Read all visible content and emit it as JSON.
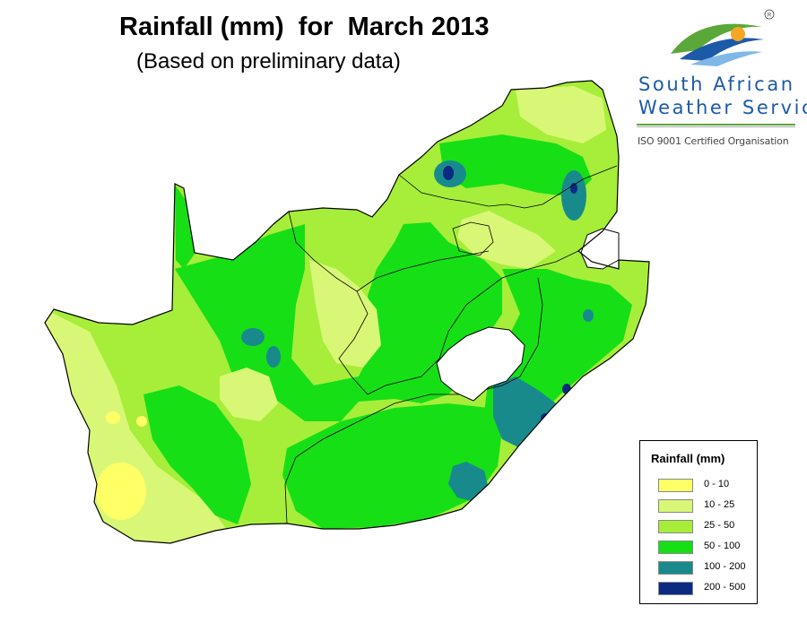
{
  "header": {
    "title": "Rainfall (mm)  for  March 2013",
    "subtitle": "(Based on preliminary data)"
  },
  "logo": {
    "name_line1": "South African",
    "name_line2": "Weather Service",
    "registered_mark": "R",
    "tagline": "ISO 9001 Certified Organisation",
    "colors": {
      "text": "#1c5aa8",
      "sun": "#f5a623",
      "green": "#5aa83a",
      "blue": "#1c5aa8"
    }
  },
  "legend": {
    "title": "Rainfall (mm)",
    "items": [
      {
        "label": "0 - 10",
        "color": "#ffff66"
      },
      {
        "label": "10 - 25",
        "color": "#d9f776"
      },
      {
        "label": "25 - 50",
        "color": "#a6ee3a"
      },
      {
        "label": "50 - 100",
        "color": "#16df16"
      },
      {
        "label": "100 - 200",
        "color": "#198a8c"
      },
      {
        "label": "200 - 500",
        "color": "#0b2a82"
      }
    ]
  },
  "map": {
    "subject": "South Africa",
    "enclave_color": "#ffffff",
    "border_color": "#000000"
  }
}
